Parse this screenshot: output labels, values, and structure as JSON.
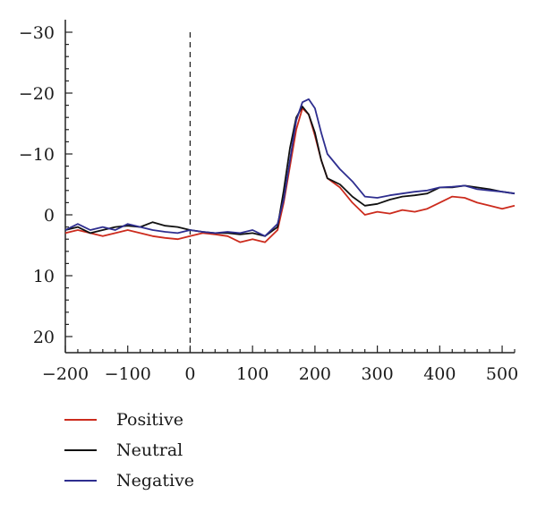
{
  "chart_data": {
    "type": "line",
    "xlim": [
      -200,
      520
    ],
    "ylim": [
      -30,
      22
    ],
    "y_inverted": true,
    "x_ticks": [
      -200,
      -100,
      0,
      100,
      200,
      300,
      400,
      500
    ],
    "x_tick_labels": [
      "−200",
      "−100",
      "0",
      "100",
      "200",
      "300",
      "400",
      "500"
    ],
    "y_ticks": [
      -30,
      -20,
      -10,
      0,
      10,
      20
    ],
    "y_tick_labels": [
      "−30",
      "−20",
      "−10",
      "0",
      "10",
      "20"
    ],
    "vertical_marker_x": 0,
    "grid": false,
    "legend_position": "bottom-left",
    "x": [
      -200,
      -180,
      -160,
      -140,
      -120,
      -100,
      -80,
      -60,
      -40,
      -20,
      0,
      20,
      40,
      60,
      80,
      100,
      120,
      140,
      150,
      160,
      170,
      180,
      190,
      200,
      210,
      220,
      240,
      260,
      280,
      300,
      320,
      340,
      360,
      380,
      400,
      420,
      440,
      460,
      480,
      500,
      520
    ],
    "series": [
      {
        "name": "Positive",
        "color": "#cc2b1d",
        "values": [
          3.0,
          2.5,
          3.0,
          3.5,
          3.0,
          2.5,
          3.0,
          3.5,
          3.8,
          4.0,
          3.5,
          3.0,
          3.2,
          3.5,
          4.5,
          4.0,
          4.5,
          2.5,
          -2.0,
          -8.0,
          -14.0,
          -17.5,
          -16.5,
          -13.0,
          -9.0,
          -6.0,
          -4.5,
          -2.0,
          0.0,
          -0.5,
          -0.2,
          -0.8,
          -0.5,
          -1.0,
          -2.0,
          -3.0,
          -2.8,
          -2.0,
          -1.5,
          -1.0,
          -1.5
        ]
      },
      {
        "name": "Neutral",
        "color": "#111111",
        "values": [
          2.5,
          2.0,
          3.0,
          2.5,
          2.0,
          1.8,
          2.0,
          1.2,
          1.8,
          2.0,
          2.5,
          2.8,
          3.0,
          3.0,
          3.2,
          3.0,
          3.5,
          2.0,
          -4.0,
          -11.0,
          -16.0,
          -17.8,
          -16.5,
          -13.5,
          -9.0,
          -6.0,
          -5.0,
          -3.0,
          -1.5,
          -1.8,
          -2.5,
          -3.0,
          -3.2,
          -3.5,
          -4.5,
          -4.5,
          -4.8,
          -4.5,
          -4.2,
          -3.8,
          -3.5
        ]
      },
      {
        "name": "Negative",
        "color": "#2e2e8f",
        "values": [
          2.5,
          1.5,
          2.5,
          2.0,
          2.5,
          1.5,
          2.0,
          2.5,
          2.8,
          3.0,
          2.5,
          2.8,
          3.0,
          2.8,
          3.0,
          2.5,
          3.5,
          1.5,
          -2.5,
          -9.0,
          -15.5,
          -18.5,
          -19.0,
          -17.5,
          -13.5,
          -10.0,
          -7.5,
          -5.5,
          -3.0,
          -2.8,
          -3.2,
          -3.5,
          -3.8,
          -4.0,
          -4.5,
          -4.6,
          -4.8,
          -4.2,
          -4.0,
          -3.8,
          -3.5
        ]
      }
    ]
  }
}
